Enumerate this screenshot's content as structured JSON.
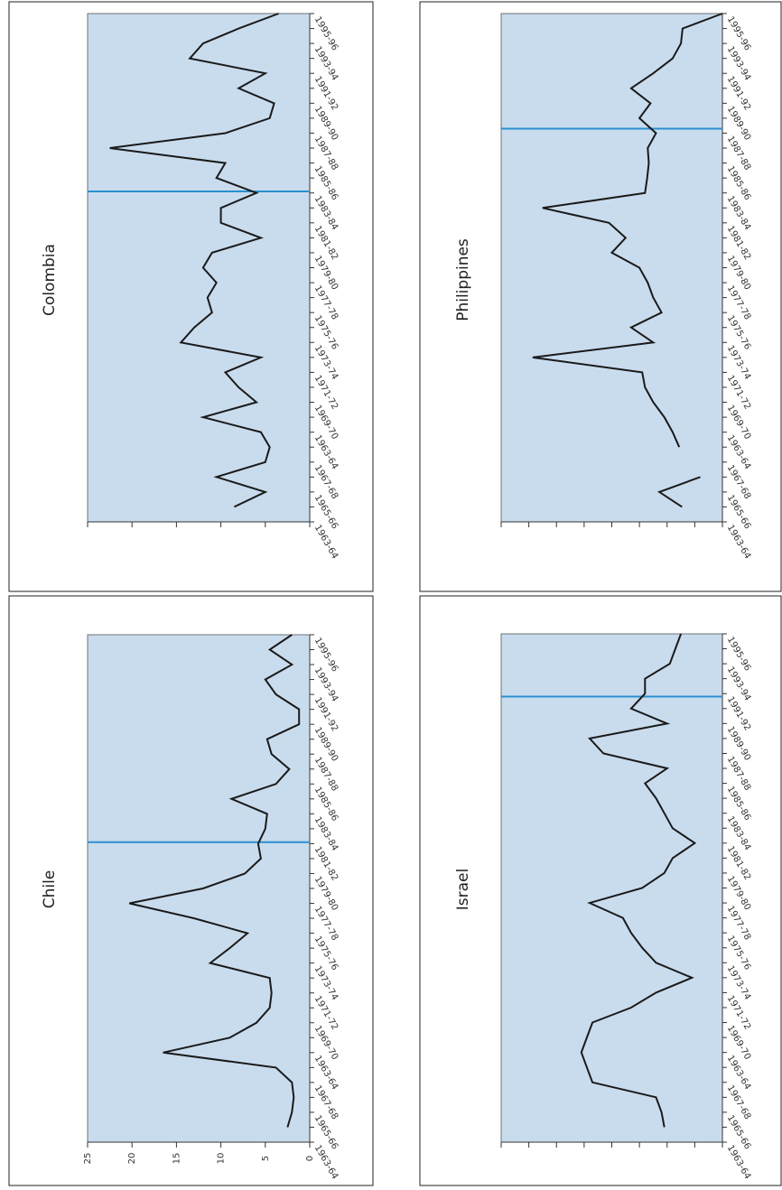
{
  "chart_data": [
    {
      "type": "line",
      "title": "Chile",
      "categories": [
        "1963-64",
        null,
        "1965-66",
        null,
        "1967-68",
        null,
        "1963-64",
        null,
        "1969-70",
        null,
        "1971-72",
        null,
        "1973-74",
        null,
        "1975-76",
        null,
        "1977-78",
        null,
        "1979-80",
        null,
        "1981-82",
        null,
        "1983-84",
        null,
        "1985-86",
        null,
        "1987-88",
        null,
        "1989-90",
        null,
        "1991-92",
        null,
        "1993-94",
        null,
        "1995-96"
      ],
      "series": [
        {
          "color": "#1a1a1a",
          "values": [
            null,
            2.5,
            2,
            1.8,
            2,
            3.8,
            16.5,
            9,
            6,
            4.5,
            4.3,
            4.5,
            11.2,
            9,
            7,
            13,
            20.3,
            12,
            7.3,
            5.5,
            5.8,
            5,
            4.8,
            8.8,
            3.8,
            2.3,
            4.3,
            4.8,
            1.2,
            1.2,
            3.8,
            5,
            2,
            4.5,
            2
          ]
        }
      ],
      "ylim": [
        0,
        25
      ],
      "yticks": [
        0,
        5,
        10,
        15,
        20,
        25
      ],
      "ytick_labels_shown": true,
      "vline": {
        "x": 20.1,
        "color": "#2a8fcf"
      },
      "plot_color": "#c9dcee"
    },
    {
      "type": "line",
      "title": "Colombia",
      "categories": [
        "1963-64",
        null,
        "1965-66",
        null,
        "1967-68",
        null,
        "1963-64",
        null,
        "1969-70",
        null,
        "1971-72",
        null,
        "1973-74",
        null,
        "1975-76",
        null,
        "1977-78",
        null,
        "1979-80",
        null,
        "1981-82",
        null,
        "1983-84",
        null,
        "1985-86",
        null,
        "1987-88",
        null,
        "1989-90",
        null,
        "1991-92",
        null,
        "1993-94",
        null,
        "1995-96"
      ],
      "series": [
        {
          "color": "#1a1a1a",
          "values": [
            null,
            8.5,
            5,
            10.5,
            5,
            4.5,
            5.5,
            12,
            6,
            8,
            9.5,
            5.5,
            14.5,
            13,
            11,
            11.5,
            10.5,
            12,
            11,
            5.5,
            10,
            10,
            6,
            10.5,
            9.5,
            22.5,
            9.5,
            4.5,
            4,
            8,
            5,
            13.5,
            12,
            8,
            3.5
          ]
        }
      ],
      "ylim": [
        0,
        25
      ],
      "yticks": [
        0,
        5,
        10,
        15,
        20,
        25
      ],
      "ytick_labels_shown": false,
      "vline": {
        "x": 22.1,
        "color": "#2a8fcf"
      },
      "plot_color": "#c9dcee"
    },
    {
      "type": "line",
      "title": "Israel",
      "categories": [
        "1963-64",
        null,
        "1965-66",
        null,
        "1967-68",
        null,
        "1963-64",
        null,
        "1969-70",
        null,
        "1971-72",
        null,
        "1973-74",
        null,
        "1975-76",
        null,
        "1977-78",
        null,
        "1979-80",
        null,
        "1981-82",
        null,
        "1983-84",
        null,
        "1985-86",
        null,
        "1987-88",
        null,
        "1989-90",
        null,
        "1991-92",
        null,
        "1993-94",
        null,
        "1995-96"
      ],
      "series": [
        {
          "color": "#1a1a1a",
          "values": [
            null,
            2.1,
            2.2,
            2.4,
            4.7,
            4.9,
            5.1,
            4.9,
            4.7,
            3.3,
            2.4,
            1.1,
            2.4,
            2.9,
            3.3,
            3.6,
            4.8,
            2.9,
            2.1,
            1.8,
            1.0,
            1.8,
            2.1,
            2.4,
            2.8,
            2.0,
            4.3,
            4.8,
            2.0,
            3.3,
            2.8,
            2.8,
            1.9,
            1.7,
            1.5
          ]
        }
      ],
      "ylim": [
        0,
        8
      ],
      "yticks": [
        0,
        1,
        2,
        3,
        4,
        5,
        6,
        7,
        8
      ],
      "ytick_labels_shown": false,
      "vline": {
        "x": 29.8,
        "color": "#2a8fcf"
      },
      "plot_color": "#c9dcee"
    },
    {
      "type": "line",
      "title": "Philippines",
      "categories": [
        "1963-64",
        null,
        "1965-66",
        null,
        "1967-68",
        null,
        "1963-64",
        null,
        "1969-70",
        null,
        "1971-72",
        null,
        "1973-74",
        null,
        "1975-76",
        null,
        "1977-78",
        null,
        "1979-80",
        null,
        "1981-82",
        null,
        "1983-84",
        null,
        "1985-86",
        null,
        "1987-88",
        null,
        "1989-90",
        null,
        "1991-92",
        null,
        "1993-94",
        null,
        "1995-96"
      ],
      "series": [
        {
          "color": "#1a1a1a",
          "values": [
            null,
            7.3,
            11.4,
            4,
            null,
            7.8,
            9,
            10.5,
            12.5,
            14,
            14.5,
            34.3,
            12.5,
            16.5,
            11,
            12.5,
            13.5,
            15,
            20,
            17.5,
            20.5,
            32.5,
            14,
            13.6,
            13.3,
            13.5,
            12,
            15,
            13,
            16.5,
            12.5,
            9,
            7.5,
            7.2,
            0
          ]
        }
      ],
      "ylim": [
        0,
        40
      ],
      "yticks": [
        0,
        5,
        10,
        15,
        20,
        25,
        30,
        35,
        40
      ],
      "ytick_labels_shown": false,
      "vline": {
        "x": 26.3,
        "color": "#2a8fcf"
      },
      "plot_color": "#c9dcee"
    }
  ]
}
